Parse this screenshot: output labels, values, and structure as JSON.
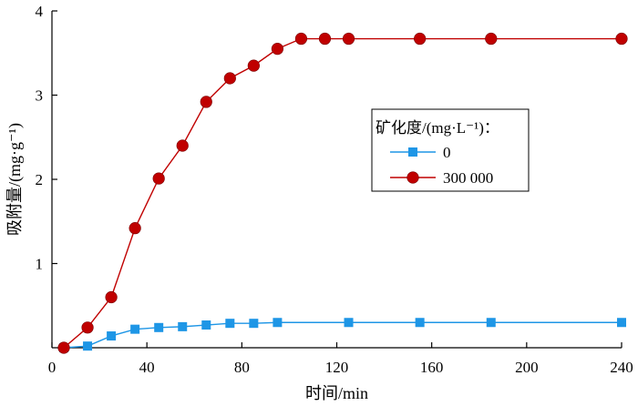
{
  "chart_data": {
    "type": "line",
    "xlabel": "时间/min",
    "ylabel": "吸附量/(mg·g⁻¹)",
    "xlim": [
      0,
      240
    ],
    "ylim": [
      0,
      4
    ],
    "xticks": [
      0,
      40,
      80,
      120,
      160,
      200,
      240
    ],
    "yticks": [
      1,
      2,
      3,
      4
    ],
    "grid": false,
    "legend": {
      "title": "矿化度/(mg·L⁻¹)：",
      "placement": "right-middle"
    },
    "series": [
      {
        "name": "0",
        "color": "#1e96e6",
        "marker": "square",
        "x": [
          5,
          15,
          25,
          35,
          45,
          55,
          65,
          75,
          85,
          95,
          125,
          155,
          185,
          240
        ],
        "y": [
          0,
          0.02,
          0.14,
          0.22,
          0.24,
          0.25,
          0.27,
          0.29,
          0.29,
          0.3,
          0.3,
          0.3,
          0.3,
          0.3
        ]
      },
      {
        "name": "300 000",
        "color": "#c00000",
        "marker": "circle",
        "x": [
          5,
          15,
          25,
          35,
          45,
          55,
          65,
          75,
          85,
          95,
          105,
          115,
          125,
          155,
          185,
          240
        ],
        "y": [
          0,
          0.24,
          0.6,
          1.42,
          2.01,
          2.4,
          2.92,
          3.2,
          3.35,
          3.55,
          3.67,
          3.67,
          3.67,
          3.67,
          3.67,
          3.67
        ]
      }
    ]
  }
}
